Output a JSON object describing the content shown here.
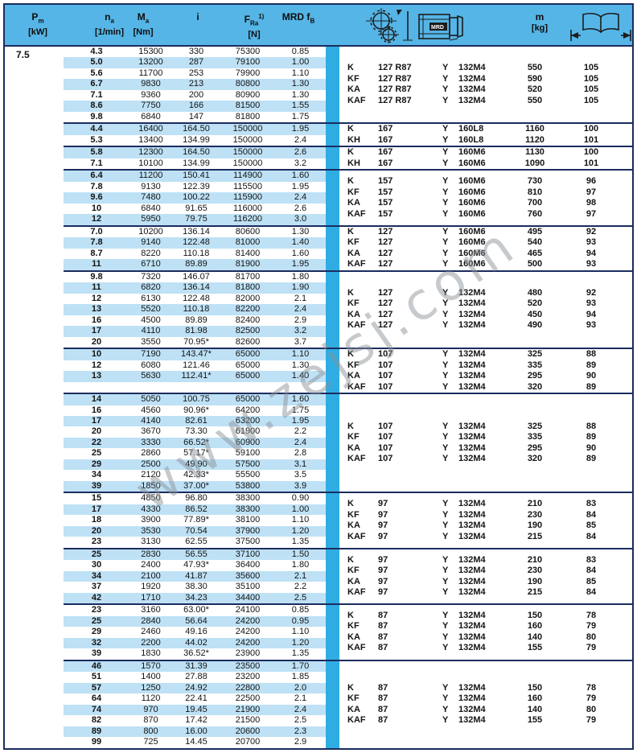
{
  "page": {
    "pm_value": "7.5",
    "watermark": "www.zejsj.com"
  },
  "header": {
    "pm": {
      "sym": "P",
      "sub": "m",
      "unit": "[kW]"
    },
    "na": {
      "sym": "n",
      "sub": "a",
      "unit": "[1/min]"
    },
    "ma": {
      "sym": "M",
      "sub": "a",
      "unit": "[Nm]"
    },
    "i": {
      "sym": "i"
    },
    "fra": {
      "sym": "F",
      "sub": "Ra",
      "sup": "1)",
      "unit": "[N]"
    },
    "mrd": {
      "pre": "MRD f",
      "sub": "B"
    },
    "m": {
      "sym": "m",
      "unit": "[kg]"
    },
    "motor_label": "MRD"
  },
  "columns_left": [
    "na",
    "ma",
    "i",
    "fra",
    "fb"
  ],
  "columns_right": [
    "type",
    "ratio",
    "y",
    "motor",
    "m",
    "page"
  ],
  "groups": [
    {
      "left": [
        [
          "4.3",
          "15300",
          "330",
          "75300",
          "0.85"
        ],
        [
          "5.0",
          "13200",
          "287",
          "79100",
          "1.00"
        ],
        [
          "5.6",
          "11700",
          "253",
          "79900",
          "1.10"
        ],
        [
          "6.7",
          "9830",
          "213",
          "80800",
          "1.30"
        ],
        [
          "7.1",
          "9360",
          "200",
          "80900",
          "1.30"
        ],
        [
          "8.6",
          "7750",
          "166",
          "81500",
          "1.55"
        ],
        [
          "9.8",
          "6840",
          "147",
          "81800",
          "1.75"
        ]
      ],
      "right": [
        [
          "K",
          "127 R87",
          "Y",
          "132M4",
          "550",
          "105"
        ],
        [
          "KF",
          "127 R87",
          "Y",
          "132M4",
          "590",
          "105"
        ],
        [
          "KA",
          "127 R87",
          "Y",
          "132M4",
          "520",
          "105"
        ],
        [
          "KAF",
          "127 R87",
          "Y",
          "132M4",
          "550",
          "105"
        ]
      ]
    },
    {
      "left": [
        [
          "4.4",
          "16400",
          "164.50",
          "150000",
          "1.95"
        ],
        [
          "5.3",
          "13400",
          "134.99",
          "150000",
          "2.4"
        ]
      ],
      "right": [
        [
          "K",
          "167",
          "Y",
          "160L8",
          "1160",
          "100"
        ],
        [
          "KH",
          "167",
          "Y",
          "160L8",
          "1120",
          "101"
        ]
      ]
    },
    {
      "left": [
        [
          "5.8",
          "12300",
          "164.50",
          "150000",
          "2.6"
        ],
        [
          "7.1",
          "10100",
          "134.99",
          "150000",
          "3.2"
        ]
      ],
      "right": [
        [
          "K",
          "167",
          "Y",
          "160M6",
          "1130",
          "100"
        ],
        [
          "KH",
          "167",
          "Y",
          "160M6",
          "1090",
          "101"
        ]
      ]
    },
    {
      "left": [
        [
          "6.4",
          "11200",
          "150.41",
          "114900",
          "1.60"
        ],
        [
          "7.8",
          "9130",
          "122.39",
          "115500",
          "1.95"
        ],
        [
          "9.6",
          "7480",
          "100.22",
          "115900",
          "2.4"
        ],
        [
          "10",
          "6840",
          "91.65",
          "116000",
          "2.6"
        ],
        [
          "12",
          "5950",
          "79.75",
          "116200",
          "3.0"
        ]
      ],
      "right": [
        [
          "K",
          "157",
          "Y",
          "160M6",
          "730",
          "96"
        ],
        [
          "KF",
          "157",
          "Y",
          "160M6",
          "810",
          "97"
        ],
        [
          "KA",
          "157",
          "Y",
          "160M6",
          "700",
          "98"
        ],
        [
          "KAF",
          "157",
          "Y",
          "160M6",
          "760",
          "97"
        ]
      ]
    },
    {
      "left": [
        [
          "7.0",
          "10200",
          "136.14",
          "80600",
          "1.30"
        ],
        [
          "7.8",
          "9140",
          "122.48",
          "81000",
          "1.40"
        ],
        [
          "8.7",
          "8220",
          "110.18",
          "81400",
          "1.60"
        ],
        [
          "11",
          "6710",
          "89.89",
          "81900",
          "1.95"
        ]
      ],
      "right": [
        [
          "K",
          "127",
          "Y",
          "160M6",
          "495",
          "92"
        ],
        [
          "KF",
          "127",
          "Y",
          "160M6",
          "540",
          "93"
        ],
        [
          "KA",
          "127",
          "Y",
          "160M6",
          "465",
          "94"
        ],
        [
          "KAF",
          "127",
          "Y",
          "160M6",
          "500",
          "93"
        ]
      ]
    },
    {
      "left": [
        [
          "9.8",
          "7320",
          "146.07",
          "81700",
          "1.80"
        ],
        [
          "11",
          "6820",
          "136.14",
          "81800",
          "1.90"
        ],
        [
          "12",
          "6130",
          "122.48",
          "82000",
          "2.1"
        ],
        [
          "13",
          "5520",
          "110.18",
          "82200",
          "2.4"
        ],
        [
          "16",
          "4500",
          "89.89",
          "82400",
          "2.9"
        ],
        [
          "17",
          "4110",
          "81.98",
          "82500",
          "3.2"
        ],
        [
          "20",
          "3550",
          "70.95*",
          "82600",
          "3.7"
        ]
      ],
      "right": [
        [
          "K",
          "127",
          "Y",
          "132M4",
          "480",
          "92"
        ],
        [
          "KF",
          "127",
          "Y",
          "132M4",
          "520",
          "93"
        ],
        [
          "KA",
          "127",
          "Y",
          "132M4",
          "450",
          "94"
        ],
        [
          "KAF",
          "127",
          "Y",
          "132M4",
          "490",
          "93"
        ]
      ]
    },
    {
      "left": [
        [
          "10",
          "7190",
          "143.47*",
          "65000",
          "1.10"
        ],
        [
          "12",
          "6080",
          "121.46",
          "65000",
          "1.30"
        ],
        [
          "13",
          "5630",
          "112.41*",
          "65000",
          "1.40"
        ],
        [
          "",
          "",
          "",
          "",
          ""
        ]
      ],
      "right": [
        [
          "K",
          "107",
          "Y",
          "132M4",
          "325",
          "88"
        ],
        [
          "KF",
          "107",
          "Y",
          "132M4",
          "335",
          "89"
        ],
        [
          "KA",
          "107",
          "Y",
          "132M4",
          "295",
          "90"
        ],
        [
          "KAF",
          "107",
          "Y",
          "132M4",
          "320",
          "89"
        ]
      ]
    },
    {
      "left": [
        [
          "14",
          "5050",
          "100.75",
          "65000",
          "1.60"
        ],
        [
          "16",
          "4560",
          "90.96*",
          "64200",
          "1.75"
        ],
        [
          "17",
          "4140",
          "82.61",
          "63200",
          "1.95"
        ],
        [
          "20",
          "3670",
          "73.30",
          "61900",
          "2.2"
        ],
        [
          "22",
          "3330",
          "66.52*",
          "60900",
          "2.4"
        ],
        [
          "25",
          "2860",
          "57.17*",
          "59100",
          "2.8"
        ],
        [
          "29",
          "2500",
          "49.90",
          "57500",
          "3.1"
        ],
        [
          "34",
          "2120",
          "42.33*",
          "55500",
          "3.5"
        ],
        [
          "39",
          "1850",
          "37.00*",
          "53800",
          "3.9"
        ]
      ],
      "right": [
        [
          "K",
          "107",
          "Y",
          "132M4",
          "325",
          "88"
        ],
        [
          "KF",
          "107",
          "Y",
          "132M4",
          "335",
          "89"
        ],
        [
          "KA",
          "107",
          "Y",
          "132M4",
          "295",
          "90"
        ],
        [
          "KAF",
          "107",
          "Y",
          "132M4",
          "320",
          "89"
        ]
      ]
    },
    {
      "left": [
        [
          "15",
          "4850",
          "96.80",
          "38300",
          "0.90"
        ],
        [
          "17",
          "4330",
          "86.52",
          "38300",
          "1.00"
        ],
        [
          "18",
          "3900",
          "77.89*",
          "38100",
          "1.10"
        ],
        [
          "20",
          "3530",
          "70.54",
          "37900",
          "1.20"
        ],
        [
          "23",
          "3130",
          "62.55",
          "37500",
          "1.35"
        ]
      ],
      "right": [
        [
          "K",
          "97",
          "Y",
          "132M4",
          "210",
          "83"
        ],
        [
          "KF",
          "97",
          "Y",
          "132M4",
          "230",
          "84"
        ],
        [
          "KA",
          "97",
          "Y",
          "132M4",
          "190",
          "85"
        ],
        [
          "KAF",
          "97",
          "Y",
          "132M4",
          "215",
          "84"
        ]
      ]
    },
    {
      "left": [
        [
          "25",
          "2830",
          "56.55",
          "37100",
          "1.50"
        ],
        [
          "30",
          "2400",
          "47.93*",
          "36400",
          "1.80"
        ],
        [
          "34",
          "2100",
          "41.87",
          "35600",
          "2.1"
        ],
        [
          "37",
          "1920",
          "38.30",
          "35100",
          "2.2"
        ],
        [
          "42",
          "1710",
          "34.23",
          "34400",
          "2.5"
        ]
      ],
      "right": [
        [
          "K",
          "97",
          "Y",
          "132M4",
          "210",
          "83"
        ],
        [
          "KF",
          "97",
          "Y",
          "132M4",
          "230",
          "84"
        ],
        [
          "KA",
          "97",
          "Y",
          "132M4",
          "190",
          "85"
        ],
        [
          "KAF",
          "97",
          "Y",
          "132M4",
          "215",
          "84"
        ]
      ]
    },
    {
      "left": [
        [
          "23",
          "3160",
          "63.00*",
          "24100",
          "0.85"
        ],
        [
          "25",
          "2840",
          "56.64",
          "24200",
          "0.95"
        ],
        [
          "29",
          "2460",
          "49.16",
          "24200",
          "1.10"
        ],
        [
          "32",
          "2200",
          "44.02",
          "24200",
          "1.20"
        ],
        [
          "39",
          "1830",
          "36.52*",
          "23900",
          "1.35"
        ]
      ],
      "right": [
        [
          "K",
          "87",
          "Y",
          "132M4",
          "150",
          "78"
        ],
        [
          "KF",
          "87",
          "Y",
          "132M4",
          "160",
          "79"
        ],
        [
          "KA",
          "87",
          "Y",
          "132M4",
          "140",
          "80"
        ],
        [
          "KAF",
          "87",
          "Y",
          "132M4",
          "155",
          "79"
        ]
      ]
    },
    {
      "left": [
        [
          "46",
          "1570",
          "31.39",
          "23500",
          "1.70"
        ],
        [
          "51",
          "1400",
          "27.88",
          "23200",
          "1.85"
        ],
        [
          "57",
          "1250",
          "24.92",
          "22800",
          "2.0"
        ],
        [
          "64",
          "1120",
          "22.41",
          "22500",
          "2.1"
        ],
        [
          "74",
          "970",
          "19.45",
          "21900",
          "2.4"
        ],
        [
          "82",
          "870",
          "17.42",
          "21500",
          "2.5"
        ],
        [
          "89",
          "800",
          "16.00",
          "20600",
          "2.3"
        ],
        [
          "99",
          "725",
          "14.45",
          "20700",
          "2.9"
        ]
      ],
      "right": [
        [
          "K",
          "87",
          "Y",
          "132M4",
          "150",
          "78"
        ],
        [
          "KF",
          "87",
          "Y",
          "132M4",
          "160",
          "79"
        ],
        [
          "KA",
          "87",
          "Y",
          "132M4",
          "140",
          "80"
        ],
        [
          "KAF",
          "87",
          "Y",
          "132M4",
          "155",
          "79"
        ]
      ]
    }
  ]
}
